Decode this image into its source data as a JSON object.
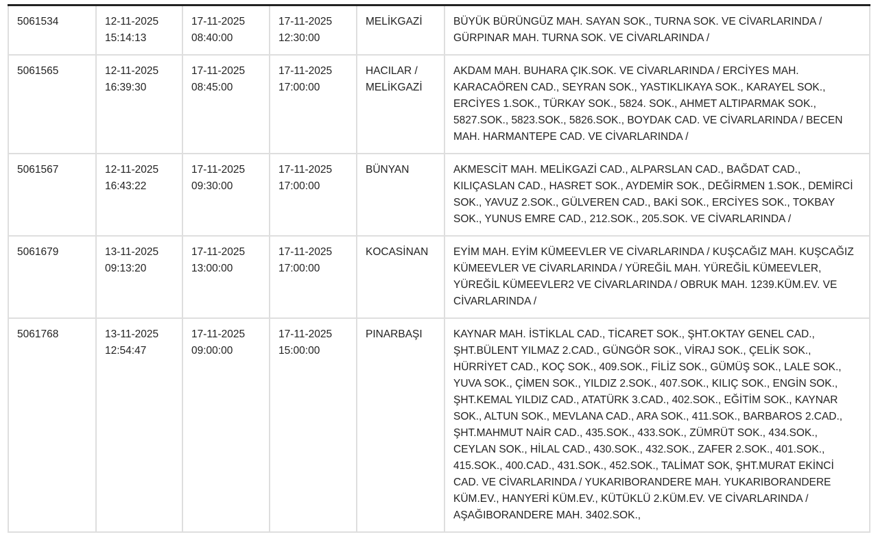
{
  "rows": [
    {
      "id": "5061534",
      "created": [
        "12-11-2025",
        "15:14:13"
      ],
      "start": [
        "17-11-2025",
        "08:40:00"
      ],
      "end": [
        "17-11-2025",
        "12:30:00"
      ],
      "district": "MELİKGAZİ",
      "locations": "BÜYÜK BÜRÜNGÜZ MAH. SAYAN SOK., TURNA SOK. VE CİVARLARINDA / GÜRPINAR MAH. TURNA SOK. VE CİVARLARINDA /"
    },
    {
      "id": "5061565",
      "created": [
        "12-11-2025",
        "16:39:30"
      ],
      "start": [
        "17-11-2025",
        "08:45:00"
      ],
      "end": [
        "17-11-2025",
        "17:00:00"
      ],
      "district": "HACILAR / MELİKGAZİ",
      "locations": "AKDAM MAH. BUHARA ÇIK.SOK. VE CİVARLARINDA / ERCİYES MAH. KARACAÖREN CAD., SEYRAN SOK., YASTIKLIKAYA SOK., KARAYEL SOK., ERCİYES 1.SOK., TÜRKAY SOK., 5824. SOK., AHMET ALTIPARMAK SOK., 5827.SOK., 5823.SOK., 5826.SOK., BOYDAK CAD. VE CİVARLARINDA / BECEN MAH. HARMANTEPE CAD. VE CİVARLARINDA /"
    },
    {
      "id": "5061567",
      "created": [
        "12-11-2025",
        "16:43:22"
      ],
      "start": [
        "17-11-2025",
        "09:30:00"
      ],
      "end": [
        "17-11-2025",
        "17:00:00"
      ],
      "district": "BÜNYAN",
      "locations": "AKMESCİT MAH. MELİKGAZİ CAD., ALPARSLAN CAD., BAĞDAT CAD., KILIÇASLAN CAD., HASRET SOK., AYDEMİR SOK., DEĞİRMEN 1.SOK., DEMİRCİ SOK., YAVUZ 2.SOK., GÜLVEREN CAD., BAKİ SOK., ERCİYES SOK., TOKBAY SOK., YUNUS EMRE CAD., 212.SOK., 205.SOK. VE CİVARLARINDA /"
    },
    {
      "id": "5061679",
      "created": [
        "13-11-2025",
        "09:13:20"
      ],
      "start": [
        "17-11-2025",
        "13:00:00"
      ],
      "end": [
        "17-11-2025",
        "17:00:00"
      ],
      "district": "KOCASİNAN",
      "locations": "EYİM MAH. EYİM KÜMEEVLER VE CİVARLARINDA / KUŞCAĞIZ MAH. KUŞCAĞIZ KÜMEEVLER VE CİVARLARINDA / YÜREĞİL MAH. YÜREĞİL KÜMEEVLER, YÜREĞİL KÜMEEVLER2 VE CİVARLARINDA / OBRUK MAH. 1239.KÜM.EV. VE CİVARLARINDA /"
    },
    {
      "id": "5061768",
      "created": [
        "13-11-2025",
        "12:54:47"
      ],
      "start": [
        "17-11-2025",
        "09:00:00"
      ],
      "end": [
        "17-11-2025",
        "15:00:00"
      ],
      "district": "PINARBAŞI",
      "locations": "KAYNAR MAH. İSTİKLAL CAD., TİCARET SOK., ŞHT.OKTAY GENEL CAD., ŞHT.BÜLENT YILMAZ 2.CAD., GÜNGÖR SOK., VİRAJ SOK., ÇELİK SOK., HÜRRİYET CAD., KOÇ SOK., 409.SOK., FİLİZ SOK., GÜMÜŞ SOK., LALE SOK., YUVA SOK., ÇİMEN SOK., YILDIZ 2.SOK., 407.SOK., KILIÇ SOK., ENGİN SOK., ŞHT.KEMAL YILDIZ CAD., ATATÜRK 3.CAD., 402.SOK., EĞİTİM SOK., KAYNAR SOK., ALTUN SOK., MEVLANA CAD., ARA SOK., 411.SOK., BARBAROS 2.CAD., ŞHT.MAHMUT NAİR CAD., 435.SOK., 433.SOK., ZÜMRÜT SOK., 434.SOK., CEYLAN SOK., HİLAL CAD., 430.SOK., 432.SOK., ZAFER 2.SOK., 401.SOK., 415.SOK., 400.CAD., 431.SOK., 452.SOK., TALİMAT SOK, ŞHT.MURAT EKİNCİ CAD. VE CİVARLARINDA / YUKARIBORANDERE MAH. YUKARIBORANDERE KÜM.EV., HANYERİ KÜM.EV., KÜTÜKLÜ 2.KÜM.EV. VE CİVARLARINDA / AŞAĞIBORANDERE MAH. 3402.SOK.,"
    }
  ]
}
